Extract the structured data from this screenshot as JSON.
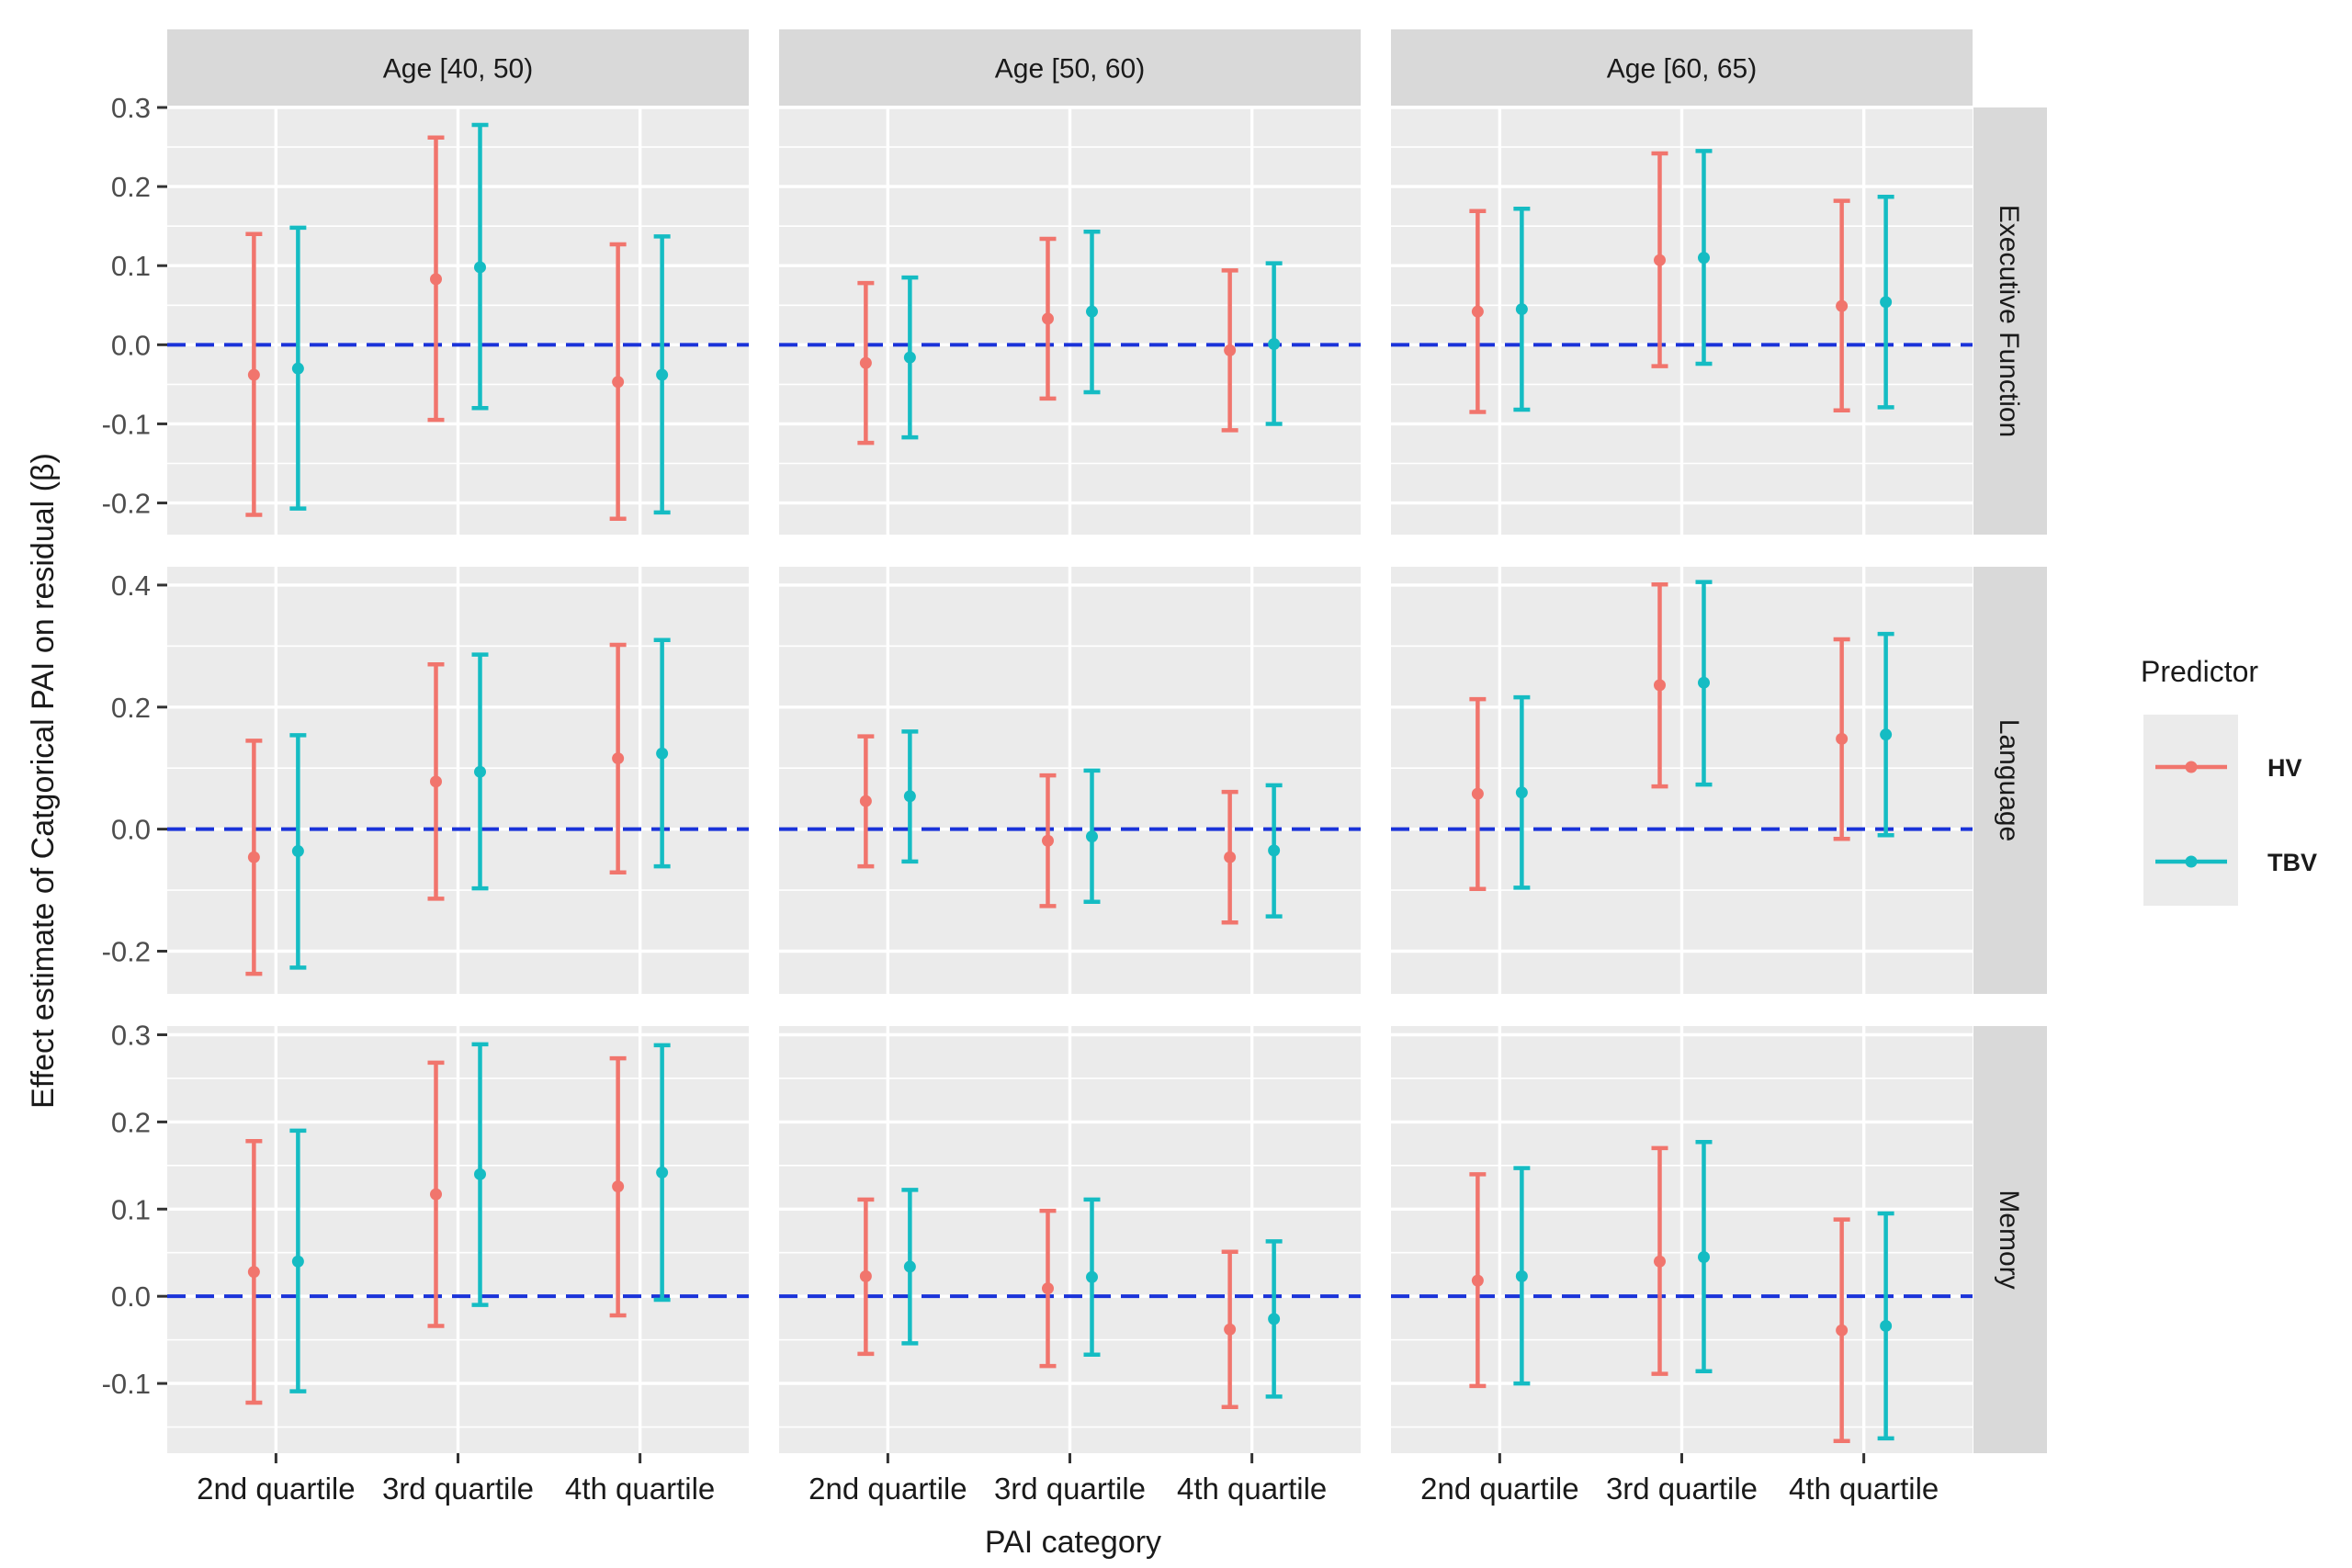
{
  "chart_data": {
    "type": "errorbar",
    "facet_type": "grid",
    "xlabel": "PAI category",
    "ylabel": "Effect estimate of Catgorical PAI on residual (β)",
    "categories": [
      "2nd quartile",
      "3rd quartile",
      "4th quartile"
    ],
    "columns": [
      "Age [40, 50)",
      "Age [50, 60)",
      "Age [60, 65)"
    ],
    "rows": [
      {
        "label": "Executive Function",
        "ylim": [
          -0.24,
          0.3
        ],
        "ticks": [
          -0.2,
          -0.1,
          0,
          0.1,
          0.2,
          0.3
        ],
        "tick_labels": [
          "-0.2",
          "-0.1",
          "0.0",
          "0.1",
          "0.2",
          "0.3"
        ]
      },
      {
        "label": "Language",
        "ylim": [
          -0.27,
          0.43
        ],
        "ticks": [
          -0.2,
          0,
          0.2,
          0.4
        ],
        "tick_labels": [
          "-0.2",
          "0.0",
          "0.2",
          "0.4"
        ]
      },
      {
        "label": "Memory",
        "ylim": [
          -0.18,
          0.31
        ],
        "ticks": [
          -0.1,
          0,
          0.1,
          0.2,
          0.3
        ],
        "tick_labels": [
          "-0.1",
          "0.0",
          "0.1",
          "0.2",
          "0.3"
        ]
      }
    ],
    "reference_line": {
      "y": 0,
      "style": "dashed",
      "color": "#1a33d9"
    },
    "legend": {
      "title": "Predictor",
      "position": "right",
      "entries": [
        {
          "name": "HV",
          "color": "#f1756d"
        },
        {
          "name": "TBV",
          "color": "#15bcc3"
        }
      ]
    },
    "grid": true,
    "panels": [
      {
        "row": 0,
        "col": 0,
        "series": [
          {
            "name": "HV",
            "estimate": [
              -0.038,
              0.083,
              -0.047
            ],
            "lower": [
              -0.215,
              -0.095,
              -0.22
            ],
            "upper": [
              0.14,
              0.262,
              0.127
            ]
          },
          {
            "name": "TBV",
            "estimate": [
              -0.03,
              0.098,
              -0.038
            ],
            "lower": [
              -0.207,
              -0.08,
              -0.212
            ],
            "upper": [
              0.148,
              0.278,
              0.137
            ]
          }
        ]
      },
      {
        "row": 0,
        "col": 1,
        "series": [
          {
            "name": "HV",
            "estimate": [
              -0.023,
              0.033,
              -0.007
            ],
            "lower": [
              -0.124,
              -0.068,
              -0.108
            ],
            "upper": [
              0.078,
              0.134,
              0.094
            ]
          },
          {
            "name": "TBV",
            "estimate": [
              -0.016,
              0.042,
              0.001
            ],
            "lower": [
              -0.117,
              -0.06,
              -0.1
            ],
            "upper": [
              0.085,
              0.143,
              0.103
            ]
          }
        ]
      },
      {
        "row": 0,
        "col": 2,
        "series": [
          {
            "name": "HV",
            "estimate": [
              0.042,
              0.107,
              0.049
            ],
            "lower": [
              -0.085,
              -0.027,
              -0.083
            ],
            "upper": [
              0.169,
              0.242,
              0.182
            ]
          },
          {
            "name": "TBV",
            "estimate": [
              0.045,
              0.11,
              0.054
            ],
            "lower": [
              -0.082,
              -0.024,
              -0.079
            ],
            "upper": [
              0.172,
              0.245,
              0.187
            ]
          }
        ]
      },
      {
        "row": 1,
        "col": 0,
        "series": [
          {
            "name": "HV",
            "estimate": [
              -0.046,
              0.078,
              0.116
            ],
            "lower": [
              -0.237,
              -0.114,
              -0.071
            ],
            "upper": [
              0.145,
              0.27,
              0.302
            ]
          },
          {
            "name": "TBV",
            "estimate": [
              -0.036,
              0.094,
              0.124
            ],
            "lower": [
              -0.227,
              -0.097,
              -0.061
            ],
            "upper": [
              0.154,
              0.286,
              0.31
            ]
          }
        ]
      },
      {
        "row": 1,
        "col": 1,
        "series": [
          {
            "name": "HV",
            "estimate": [
              0.046,
              -0.019,
              -0.046
            ],
            "lower": [
              -0.061,
              -0.126,
              -0.153
            ],
            "upper": [
              0.152,
              0.088,
              0.061
            ]
          },
          {
            "name": "TBV",
            "estimate": [
              0.054,
              -0.012,
              -0.035
            ],
            "lower": [
              -0.053,
              -0.119,
              -0.143
            ],
            "upper": [
              0.16,
              0.096,
              0.072
            ]
          }
        ]
      },
      {
        "row": 1,
        "col": 2,
        "series": [
          {
            "name": "HV",
            "estimate": [
              0.058,
              0.236,
              0.148
            ],
            "lower": [
              -0.098,
              0.07,
              -0.016
            ],
            "upper": [
              0.213,
              0.401,
              0.311
            ]
          },
          {
            "name": "TBV",
            "estimate": [
              0.06,
              0.24,
              0.155
            ],
            "lower": [
              -0.096,
              0.073,
              -0.01
            ],
            "upper": [
              0.216,
              0.405,
              0.32
            ]
          }
        ]
      },
      {
        "row": 2,
        "col": 0,
        "series": [
          {
            "name": "HV",
            "estimate": [
              0.028,
              0.117,
              0.126
            ],
            "lower": [
              -0.122,
              -0.034,
              -0.022
            ],
            "upper": [
              0.178,
              0.268,
              0.273
            ]
          },
          {
            "name": "TBV",
            "estimate": [
              0.04,
              0.14,
              0.142
            ],
            "lower": [
              -0.109,
              -0.01,
              -0.004
            ],
            "upper": [
              0.19,
              0.289,
              0.288
            ]
          }
        ]
      },
      {
        "row": 2,
        "col": 1,
        "series": [
          {
            "name": "HV",
            "estimate": [
              0.023,
              0.009,
              -0.038
            ],
            "lower": [
              -0.066,
              -0.08,
              -0.127
            ],
            "upper": [
              0.111,
              0.098,
              0.051
            ]
          },
          {
            "name": "TBV",
            "estimate": [
              0.034,
              0.022,
              -0.026
            ],
            "lower": [
              -0.054,
              -0.067,
              -0.115
            ],
            "upper": [
              0.122,
              0.111,
              0.063
            ]
          }
        ]
      },
      {
        "row": 2,
        "col": 2,
        "series": [
          {
            "name": "HV",
            "estimate": [
              0.018,
              0.04,
              -0.039
            ],
            "lower": [
              -0.103,
              -0.089,
              -0.166
            ],
            "upper": [
              0.14,
              0.17,
              0.088
            ]
          },
          {
            "name": "TBV",
            "estimate": [
              0.023,
              0.045,
              -0.034
            ],
            "lower": [
              -0.1,
              -0.086,
              -0.163
            ],
            "upper": [
              0.147,
              0.177,
              0.095
            ]
          }
        ]
      }
    ]
  }
}
